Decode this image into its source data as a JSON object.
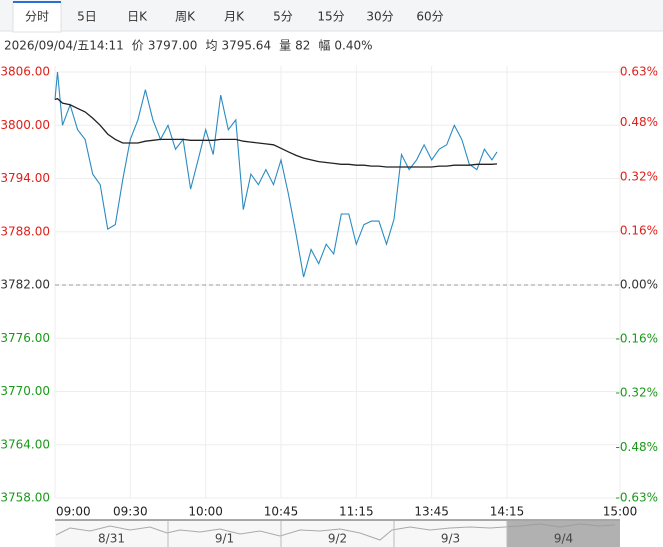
{
  "toolbar": {
    "tabs": [
      "分时",
      "5日",
      "日K",
      "周K",
      "月K",
      "5分",
      "15分",
      "30分",
      "60分"
    ],
    "active": 0
  },
  "info": {
    "datetime": "2026/09/04/五14:11",
    "items": [
      {
        "label": "价",
        "value": "3797.00"
      },
      {
        "label": "均",
        "value": "3795.64"
      },
      {
        "label": "量",
        "value": "82"
      },
      {
        "label": "幅",
        "value": "0.40%"
      }
    ]
  },
  "chart_data": {
    "type": "line",
    "x": [
      0,
      1,
      3,
      6,
      9,
      12,
      15,
      18,
      21,
      24,
      27,
      30,
      33,
      36,
      39,
      42,
      45,
      48,
      51,
      54,
      57,
      60,
      63,
      66,
      69,
      72,
      75,
      78,
      81,
      84,
      87,
      90,
      93,
      96,
      99,
      102,
      105,
      108,
      111,
      114,
      117,
      120,
      123,
      126,
      129,
      132,
      135,
      138,
      141,
      144,
      147,
      150,
      153,
      156,
      159,
      162,
      165,
      168,
      171,
      174,
      176
    ],
    "series": [
      {
        "name": "价",
        "color": "#2a8bc2",
        "values": [
          3802.9,
          3806,
          3800,
          3802.3,
          3799.5,
          3798.4,
          3794.5,
          3793.3,
          3788.3,
          3788.8,
          3793.9,
          3798.4,
          3800.6,
          3804,
          3800.6,
          3798.4,
          3800,
          3797.3,
          3798.4,
          3792.8,
          3796.1,
          3799.5,
          3796.7,
          3803.4,
          3799.5,
          3800.6,
          3790.5,
          3794.5,
          3793.3,
          3795,
          3793.3,
          3796.1,
          3792.2,
          3787.7,
          3782.9,
          3786,
          3784.4,
          3786.6,
          3785.5,
          3790,
          3790,
          3786.6,
          3788.8,
          3789.2,
          3789.2,
          3786.6,
          3789.4,
          3796.7,
          3795,
          3796.1,
          3797.8,
          3796.1,
          3797.3,
          3797.8,
          3800,
          3798.4,
          3795.6,
          3795,
          3797.3,
          3796.1,
          3797
        ]
      },
      {
        "name": "均",
        "color": "#222222",
        "values": [
          3802.9,
          3803,
          3802.5,
          3802.3,
          3801.9,
          3801.5,
          3800.8,
          3800,
          3799,
          3798.4,
          3798,
          3798,
          3798,
          3798.2,
          3798.3,
          3798.4,
          3798.4,
          3798.4,
          3798.4,
          3798.3,
          3798.3,
          3798.3,
          3798.3,
          3798.4,
          3798.4,
          3798.4,
          3798.2,
          3798.1,
          3798,
          3797.9,
          3797.8,
          3797.4,
          3797,
          3796.6,
          3796.3,
          3796.1,
          3795.9,
          3795.8,
          3795.7,
          3795.6,
          3795.6,
          3795.5,
          3795.5,
          3795.4,
          3795.4,
          3795.3,
          3795.3,
          3795.3,
          3795.3,
          3795.3,
          3795.3,
          3795.3,
          3795.4,
          3795.4,
          3795.5,
          3795.5,
          3795.5,
          3795.6,
          3795.6,
          3795.6,
          3795.64
        ]
      }
    ],
    "xlim": [
      0,
      225
    ],
    "xticks": [
      {
        "value": 0,
        "label": "09:00"
      },
      {
        "value": 30,
        "label": "09:30"
      },
      {
        "value": 60,
        "label": "10:00"
      },
      {
        "value": 90,
        "label": "10:45"
      },
      {
        "value": 120,
        "label": "11:15"
      },
      {
        "value": 150,
        "label": "13:45"
      },
      {
        "value": 180,
        "label": "14:15"
      },
      {
        "value": 225,
        "label": "15:00"
      }
    ],
    "ylim": [
      3758,
      3806
    ],
    "yticks": [
      {
        "value": 3806,
        "label": "3806.00"
      },
      {
        "value": 3800,
        "label": "3800.00"
      },
      {
        "value": 3794,
        "label": "3794.00"
      },
      {
        "value": 3788,
        "label": "3788.00"
      },
      {
        "value": 3782,
        "label": "3782.00"
      },
      {
        "value": 3776,
        "label": "3776.00"
      },
      {
        "value": 3770,
        "label": "3770.00"
      },
      {
        "value": 3764,
        "label": "3764.00"
      },
      {
        "value": 3758,
        "label": "3758.00"
      }
    ],
    "y2lim": [
      -0.63,
      0.63
    ],
    "y2ticks": [
      {
        "value": 0.63,
        "label": "0.63%"
      },
      {
        "value": 0.48,
        "label": "0.48%"
      },
      {
        "value": 0.32,
        "label": "0.32%"
      },
      {
        "value": 0.16,
        "label": "0.16%"
      },
      {
        "value": 0,
        "label": "0.00%"
      },
      {
        "value": -0.16,
        "label": "-0.16%"
      },
      {
        "value": -0.32,
        "label": "-0.32%"
      },
      {
        "value": -0.48,
        "label": "-0.48%"
      },
      {
        "value": -0.63,
        "label": "-0.63%"
      }
    ],
    "baseline": 3782,
    "up_color": "#e0201a",
    "down_color": "#1a9a1a",
    "grid": true
  },
  "navigator": {
    "labels": [
      "8/31",
      "9/1",
      "9/2",
      "9/3",
      "9/4"
    ],
    "selected": 4
  }
}
